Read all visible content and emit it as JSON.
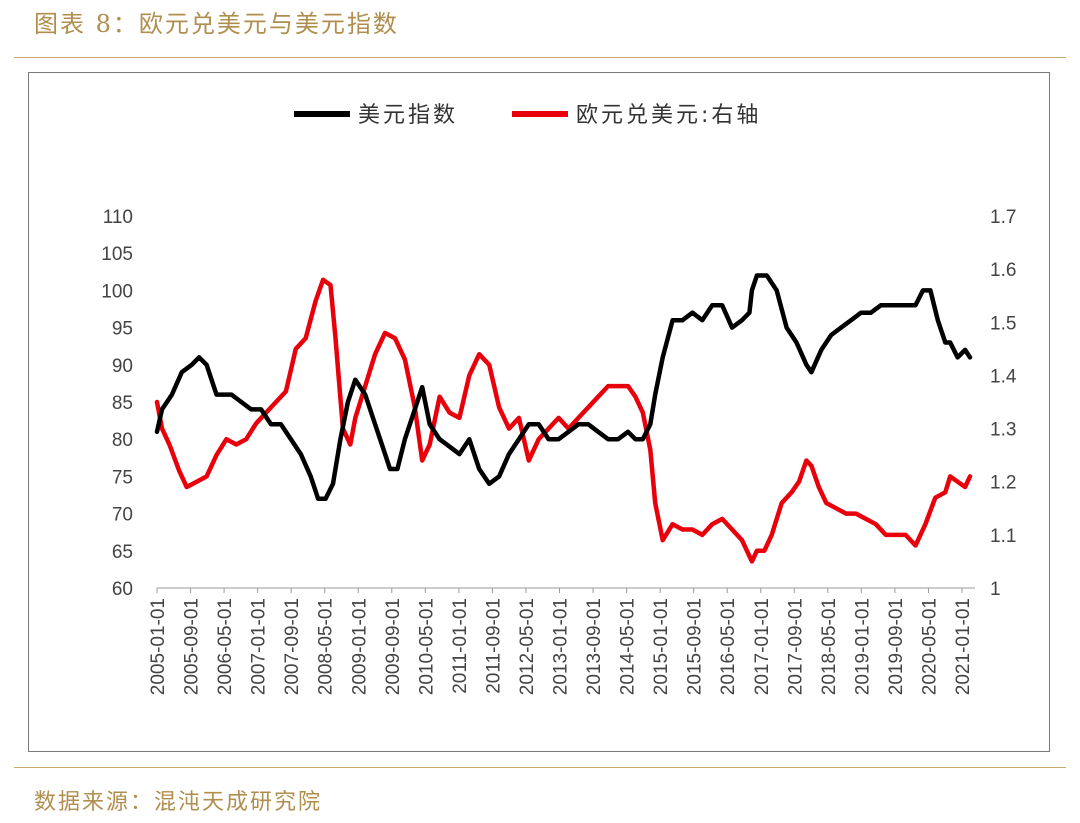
{
  "figure": {
    "title": "图表 8：欧元兑美元与美元指数",
    "source": "数据来源：混沌天成研究院"
  },
  "colors": {
    "accent": "#b08e4e",
    "usd_index": "#000000",
    "eurusd": "#e8000b"
  },
  "chart_data": {
    "type": "line",
    "title": "",
    "legend": [
      "美元指数",
      "欧元兑美元:右轴"
    ],
    "legend_position": "top-center",
    "grid": false,
    "x_tick_labels": [
      "2005-01-01",
      "2005-09-01",
      "2006-05-01",
      "2007-01-01",
      "2007-09-01",
      "2008-05-01",
      "2009-01-01",
      "2009-09-01",
      "2010-05-01",
      "2011-01-01",
      "2011-09-01",
      "2012-05-01",
      "2013-01-01",
      "2013-09-01",
      "2014-05-01",
      "2015-01-01",
      "2015-09-01",
      "2016-05-01",
      "2017-01-01",
      "2017-09-01",
      "2018-05-01",
      "2019-01-01",
      "2019-09-01",
      "2020-05-01",
      "2021-01-01"
    ],
    "x_range": [
      2005.0,
      2021.5
    ],
    "y_left": {
      "label": "",
      "ylim": [
        60,
        110
      ],
      "ticks": [
        "60",
        "65",
        "70",
        "75",
        "80",
        "85",
        "90",
        "95",
        "100",
        "105",
        "110"
      ]
    },
    "y_right": {
      "label": "",
      "ylim": [
        1.0,
        1.7
      ],
      "ticks": [
        "1",
        "1.1",
        "1.2",
        "1.3",
        "1.4",
        "1.5",
        "1.6",
        "1.7"
      ]
    },
    "series": [
      {
        "name": "美元指数",
        "axis": "left",
        "color": "#000000",
        "x": [
          2005.0,
          2005.1,
          2005.3,
          2005.5,
          2005.7,
          2005.85,
          2006.0,
          2006.2,
          2006.35,
          2006.5,
          2006.7,
          2006.9,
          2007.1,
          2007.3,
          2007.5,
          2007.7,
          2007.9,
          2008.1,
          2008.25,
          2008.4,
          2008.55,
          2008.7,
          2008.85,
          2009.0,
          2009.2,
          2009.4,
          2009.55,
          2009.7,
          2009.85,
          2010.0,
          2010.2,
          2010.35,
          2010.5,
          2010.7,
          2010.9,
          2011.1,
          2011.3,
          2011.5,
          2011.7,
          2011.9,
          2012.1,
          2012.3,
          2012.5,
          2012.7,
          2012.9,
          2013.1,
          2013.3,
          2013.5,
          2013.7,
          2013.9,
          2014.1,
          2014.3,
          2014.5,
          2014.65,
          2014.8,
          2014.95,
          2015.05,
          2015.2,
          2015.4,
          2015.6,
          2015.8,
          2016.0,
          2016.2,
          2016.4,
          2016.6,
          2016.8,
          2016.95,
          2017.0,
          2017.1,
          2017.3,
          2017.5,
          2017.7,
          2017.9,
          2018.1,
          2018.2,
          2018.4,
          2018.6,
          2018.8,
          2019.0,
          2019.2,
          2019.4,
          2019.6,
          2019.8,
          2020.0,
          2020.2,
          2020.3,
          2020.45,
          2020.6,
          2020.75,
          2020.9,
          2021.0,
          2021.15,
          2021.3,
          2021.4
        ],
        "values": [
          81,
          84,
          86,
          89,
          90,
          91,
          90,
          86,
          86,
          86,
          85,
          84,
          84,
          82,
          82,
          80,
          78,
          75,
          72,
          72,
          74,
          80,
          85,
          88,
          86,
          82,
          79,
          76,
          76,
          80,
          84,
          87,
          82,
          80,
          79,
          78,
          80,
          76,
          74,
          75,
          78,
          80,
          82,
          82,
          80,
          80,
          81,
          82,
          82,
          81,
          80,
          80,
          81,
          80,
          80,
          82,
          86,
          91,
          96,
          96,
          97,
          96,
          98,
          98,
          95,
          96,
          97,
          100,
          102,
          102,
          100,
          95,
          93,
          90,
          89,
          92,
          94,
          95,
          96,
          97,
          97,
          98,
          98,
          98,
          98,
          98,
          100,
          100,
          96,
          93,
          93,
          91,
          92,
          91
        ]
      },
      {
        "name": "欧元兑美元:右轴",
        "axis": "right",
        "color": "#e8000b",
        "x": [
          2005.0,
          2005.1,
          2005.25,
          2005.45,
          2005.6,
          2005.8,
          2006.0,
          2006.2,
          2006.4,
          2006.6,
          2006.8,
          2007.0,
          2007.2,
          2007.4,
          2007.6,
          2007.8,
          2008.0,
          2008.2,
          2008.35,
          2008.5,
          2008.6,
          2008.75,
          2008.9,
          2009.0,
          2009.2,
          2009.4,
          2009.6,
          2009.8,
          2010.0,
          2010.2,
          2010.35,
          2010.5,
          2010.7,
          2010.9,
          2011.1,
          2011.3,
          2011.5,
          2011.7,
          2011.9,
          2012.1,
          2012.3,
          2012.5,
          2012.7,
          2012.9,
          2013.1,
          2013.3,
          2013.5,
          2013.7,
          2013.9,
          2014.1,
          2014.3,
          2014.5,
          2014.65,
          2014.8,
          2014.95,
          2015.05,
          2015.2,
          2015.4,
          2015.6,
          2015.8,
          2016.0,
          2016.2,
          2016.4,
          2016.6,
          2016.8,
          2017.0,
          2017.1,
          2017.25,
          2017.4,
          2017.6,
          2017.8,
          2017.95,
          2018.1,
          2018.2,
          2018.35,
          2018.5,
          2018.7,
          2018.9,
          2019.1,
          2019.3,
          2019.5,
          2019.7,
          2019.9,
          2020.1,
          2020.3,
          2020.5,
          2020.7,
          2020.9,
          2021.0,
          2021.15,
          2021.3,
          2021.4
        ],
        "values": [
          1.35,
          1.3,
          1.27,
          1.22,
          1.19,
          1.2,
          1.21,
          1.25,
          1.28,
          1.27,
          1.28,
          1.31,
          1.33,
          1.35,
          1.37,
          1.45,
          1.47,
          1.54,
          1.58,
          1.57,
          1.47,
          1.3,
          1.27,
          1.32,
          1.38,
          1.44,
          1.48,
          1.47,
          1.43,
          1.34,
          1.24,
          1.27,
          1.36,
          1.33,
          1.32,
          1.4,
          1.44,
          1.42,
          1.34,
          1.3,
          1.32,
          1.24,
          1.28,
          1.3,
          1.32,
          1.3,
          1.32,
          1.34,
          1.36,
          1.38,
          1.38,
          1.38,
          1.36,
          1.33,
          1.26,
          1.16,
          1.09,
          1.12,
          1.11,
          1.11,
          1.1,
          1.12,
          1.13,
          1.11,
          1.09,
          1.05,
          1.07,
          1.07,
          1.1,
          1.16,
          1.18,
          1.2,
          1.24,
          1.23,
          1.19,
          1.16,
          1.15,
          1.14,
          1.14,
          1.13,
          1.12,
          1.1,
          1.1,
          1.1,
          1.08,
          1.12,
          1.17,
          1.18,
          1.21,
          1.2,
          1.19,
          1.21
        ]
      }
    ]
  }
}
